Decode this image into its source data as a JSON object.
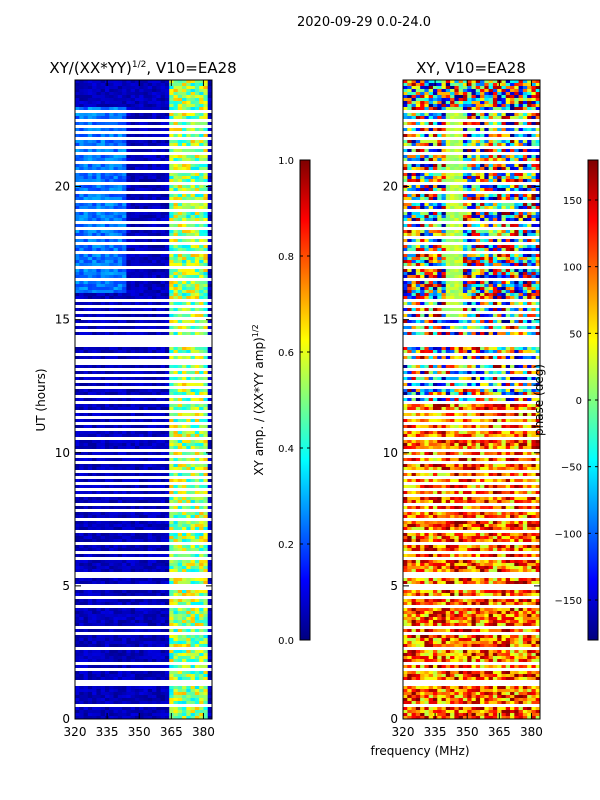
{
  "figure_title": "2020-09-29 0.0-24.0",
  "colors": {
    "jet": [
      "#00007f",
      "#0000ff",
      "#007fff",
      "#00ffff",
      "#7fff7f",
      "#ffff00",
      "#ff7f00",
      "#ff0000",
      "#7f0000"
    ],
    "background": "#ffffff"
  },
  "chart_data": [
    {
      "type": "heatmap",
      "title": "XY/(XX*YY)",
      "title_sup": "1/2",
      "title_suffix": ", V10=EA28",
      "xlabel": "",
      "ylabel": "UT (hours)",
      "xlim": [
        320,
        384
      ],
      "ylim": [
        0,
        24
      ],
      "xticks": [
        "320",
        "335",
        "350",
        "365",
        "380"
      ],
      "yticks": [
        "0",
        "5",
        "10",
        "15",
        "20"
      ],
      "colorbar": {
        "label": "XY amp. / (XX*YY amp)",
        "label_sup": "1/2",
        "range": [
          0.0,
          1.0
        ],
        "ticks": [
          "0.0",
          "0.2",
          "0.4",
          "0.6",
          "0.8",
          "1.0"
        ]
      }
    },
    {
      "type": "heatmap",
      "title": "XY, V10=EA28",
      "xlabel": "frequency (MHz)",
      "ylabel": "",
      "xlim": [
        320,
        384
      ],
      "ylim": [
        0,
        24
      ],
      "xticks": [
        "320",
        "335",
        "350",
        "365",
        "380"
      ],
      "yticks": [
        "0",
        "5",
        "10",
        "15",
        "20"
      ],
      "colorbar": {
        "label": "phase (deg)",
        "range": [
          -180,
          180
        ],
        "ticks": [
          "−150",
          "−100",
          "−50",
          "0",
          "50",
          "100",
          "150"
        ]
      }
    }
  ],
  "flagged_hours": [
    0.55,
    1.25,
    1.45,
    1.85,
    2.05,
    2.7,
    3.25,
    3.45,
    4.25,
    4.55,
    4.85,
    5.05,
    5.3,
    5.45,
    6.0,
    6.3,
    6.6,
    7.05,
    7.5,
    7.8,
    8.1,
    8.4,
    8.65,
    8.85,
    9.05,
    9.3,
    9.6,
    9.85,
    10.1,
    10.5,
    10.85,
    11.1,
    11.3,
    11.55,
    11.85,
    12.15,
    12.4,
    12.65,
    12.9,
    13.15,
    13.3,
    13.45,
    13.7,
    14.0,
    14.2,
    14.4,
    14.6,
    14.85,
    15.05,
    15.25,
    15.45,
    15.7,
    16.5,
    17.0,
    17.55,
    17.85,
    18.05,
    18.4,
    18.7,
    19.1,
    19.45,
    19.75,
    20.15,
    20.55,
    20.9,
    21.2,
    21.5,
    21.8,
    22.05,
    22.3,
    22.5,
    22.8
  ]
}
